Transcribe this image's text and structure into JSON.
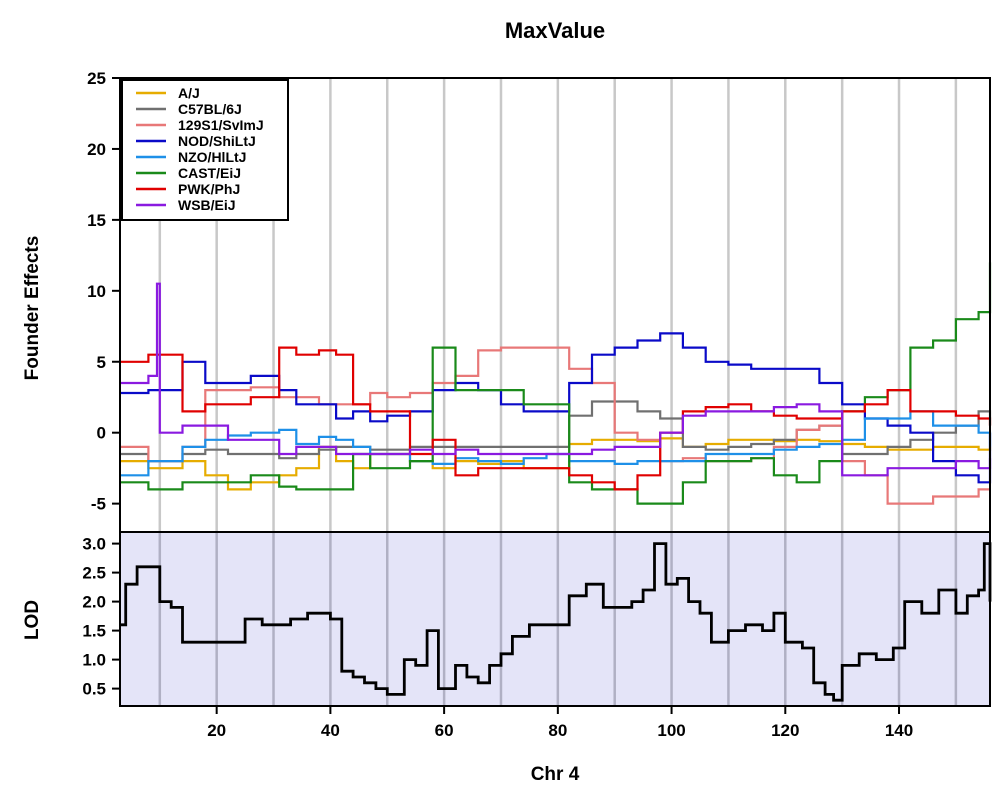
{
  "chart_data": [
    {
      "type": "line",
      "name": "founder-effects",
      "title": "MaxValue",
      "xlabel": "",
      "ylabel": "Founder Effects",
      "xlim": [
        3,
        156
      ],
      "ylim": [
        -7,
        25
      ],
      "yticks": [
        -5,
        0,
        5,
        10,
        15,
        20,
        25
      ],
      "grid_x": [
        10,
        20,
        30,
        40,
        50,
        60,
        70,
        80,
        90,
        100,
        110,
        120,
        130,
        140,
        150
      ],
      "legend_position": "top-left",
      "series": [
        {
          "name": "A/J",
          "color": "#e6ac00",
          "x": [
            3,
            8,
            14,
            18,
            22,
            26,
            31,
            34,
            38,
            41,
            44,
            47,
            50,
            54,
            58,
            62,
            66,
            70,
            74,
            78,
            82,
            86,
            90,
            94,
            98,
            102,
            106,
            110,
            114,
            118,
            122,
            126,
            130,
            134,
            138,
            142,
            146,
            150,
            154,
            156
          ],
          "y": [
            -2,
            -2.5,
            -2,
            -3,
            -4,
            -3.5,
            -3,
            -2.5,
            -1,
            -2,
            -2.5,
            -1.5,
            -1.5,
            -2,
            -2.5,
            -2,
            -2.2,
            -2,
            -2.5,
            -2.5,
            -0.8,
            -0.5,
            -0.5,
            -0.6,
            -0.4,
            -1,
            -0.8,
            -0.5,
            -0.5,
            -0.6,
            -0.5,
            -0.6,
            -0.8,
            -1,
            -1.2,
            -1.2,
            -1,
            -1,
            -1.2,
            -1
          ]
        },
        {
          "name": "C57BL/6J",
          "color": "#707070",
          "x": [
            3,
            8,
            14,
            18,
            22,
            26,
            31,
            34,
            38,
            41,
            44,
            47,
            50,
            54,
            58,
            62,
            66,
            70,
            74,
            78,
            82,
            86,
            90,
            94,
            98,
            102,
            106,
            110,
            114,
            118,
            122,
            126,
            130,
            134,
            138,
            142,
            146,
            150,
            154,
            156
          ],
          "y": [
            -1.5,
            -2,
            -1.5,
            -1.2,
            -1.5,
            -1.5,
            -1.8,
            -1.5,
            -1.2,
            -1,
            -1,
            -1.2,
            -1.2,
            -1,
            -1,
            -1,
            -1,
            -1,
            -1,
            -1,
            1.2,
            2.2,
            2.2,
            1.5,
            1,
            -1,
            -1.2,
            -1,
            -0.8,
            -0.5,
            0.2,
            0.5,
            -1.5,
            -1.5,
            -1,
            -0.5,
            0,
            0.5,
            1.5,
            0.5
          ]
        },
        {
          "name": "129S1/SvImJ",
          "color": "#e87878",
          "x": [
            3,
            8,
            14,
            18,
            22,
            26,
            31,
            34,
            38,
            41,
            44,
            47,
            50,
            54,
            58,
            62,
            66,
            70,
            74,
            78,
            82,
            86,
            90,
            94,
            98,
            102,
            106,
            110,
            114,
            118,
            122,
            126,
            130,
            134,
            138,
            142,
            146,
            150,
            154,
            156
          ],
          "y": [
            -1,
            -2,
            -1,
            3,
            3,
            3.2,
            2.5,
            2.5,
            2,
            2,
            2,
            2.8,
            2.5,
            2.8,
            3.5,
            4,
            5.8,
            6,
            6,
            6,
            4.5,
            3.5,
            0,
            -0.5,
            -2,
            -1.8,
            -2,
            -2,
            -1.8,
            -1,
            0.2,
            0.5,
            -2,
            -3,
            -5,
            -5,
            -4.5,
            -4.5,
            -4,
            -4
          ]
        },
        {
          "name": "NOD/ShiLtJ",
          "color": "#0a0ac8",
          "x": [
            3,
            8,
            14,
            18,
            22,
            26,
            31,
            34,
            38,
            41,
            44,
            47,
            50,
            54,
            58,
            62,
            66,
            70,
            74,
            78,
            82,
            86,
            90,
            94,
            98,
            102,
            106,
            110,
            114,
            118,
            122,
            126,
            130,
            134,
            138,
            142,
            146,
            150,
            154,
            156
          ],
          "y": [
            2.8,
            3,
            5,
            3.5,
            3.5,
            4,
            3,
            2,
            2,
            1,
            1.5,
            0.8,
            1.2,
            1.5,
            3,
            3.5,
            3,
            2,
            1.5,
            1.5,
            3.5,
            5.5,
            6,
            6.5,
            7,
            6,
            5,
            4.8,
            4.5,
            4.5,
            4.5,
            3.5,
            2,
            1,
            0.5,
            0,
            -2,
            -3,
            -3.5,
            0
          ]
        },
        {
          "name": "NZO/HlLtJ",
          "color": "#1e90e8",
          "x": [
            3,
            8,
            14,
            18,
            22,
            26,
            31,
            34,
            38,
            41,
            44,
            47,
            50,
            54,
            58,
            62,
            66,
            70,
            74,
            78,
            82,
            86,
            90,
            94,
            98,
            102,
            106,
            110,
            114,
            118,
            122,
            126,
            130,
            134,
            138,
            142,
            146,
            150,
            154,
            156
          ],
          "y": [
            -3,
            -2,
            -1,
            -0.5,
            -0.2,
            0,
            0.2,
            -0.8,
            -0.3,
            -0.5,
            -1,
            -1.5,
            -1.5,
            -2,
            -2.2,
            -1.8,
            -2,
            -2.2,
            -1.8,
            -1.5,
            -2,
            -2,
            -2.2,
            -2,
            -2,
            -2,
            -1.5,
            -1.5,
            -1.5,
            -1.2,
            -1,
            -0.8,
            -0.5,
            1,
            1,
            1.5,
            0.5,
            0.5,
            0,
            -1
          ]
        },
        {
          "name": "CAST/EiJ",
          "color": "#1a8a1a",
          "x": [
            3,
            8,
            14,
            18,
            22,
            26,
            31,
            34,
            38,
            41,
            44,
            47,
            50,
            54,
            58,
            62,
            66,
            70,
            74,
            78,
            82,
            86,
            90,
            94,
            98,
            102,
            106,
            110,
            114,
            118,
            122,
            126,
            130,
            134,
            138,
            142,
            146,
            150,
            154,
            156
          ],
          "y": [
            -3.5,
            -4,
            -3.5,
            -3.5,
            -3.5,
            -3,
            -3.8,
            -4,
            -4,
            -4,
            -1.5,
            -2.5,
            -2.5,
            -2,
            6,
            3,
            3,
            3,
            2,
            2,
            -3.5,
            -4,
            -4,
            -5,
            -5,
            -3.5,
            -2,
            -2,
            -1.8,
            -3,
            -3.5,
            -2,
            1.5,
            2.5,
            3,
            6,
            6.5,
            8,
            8.5,
            12
          ]
        },
        {
          "name": "PWK/PhJ",
          "color": "#e00000",
          "x": [
            3,
            8,
            14,
            18,
            22,
            26,
            31,
            34,
            38,
            41,
            44,
            47,
            50,
            54,
            58,
            62,
            66,
            70,
            74,
            78,
            82,
            86,
            90,
            94,
            98,
            102,
            106,
            110,
            114,
            118,
            122,
            126,
            130,
            134,
            138,
            142,
            146,
            150,
            154,
            156
          ],
          "y": [
            5,
            5.5,
            1.5,
            2,
            2,
            2.5,
            6,
            5.5,
            5.8,
            5.5,
            2,
            1.5,
            1.5,
            -1.5,
            -0.5,
            -3,
            -2.5,
            -2.5,
            -2.5,
            -2.5,
            -3,
            -3.5,
            -4,
            -3,
            0,
            1.5,
            1.8,
            2,
            1.5,
            1.2,
            1,
            1,
            1.5,
            2,
            3,
            1.5,
            1.5,
            1.2,
            1,
            0.5
          ]
        },
        {
          "name": "WSB/EiJ",
          "color": "#8a1ae0",
          "x": [
            3,
            8,
            9.5,
            10,
            14,
            18,
            22,
            26,
            31,
            34,
            38,
            41,
            44,
            47,
            50,
            54,
            58,
            62,
            66,
            70,
            74,
            78,
            82,
            86,
            90,
            94,
            98,
            102,
            106,
            110,
            114,
            118,
            122,
            126,
            130,
            134,
            138,
            142,
            146,
            150,
            154,
            156
          ],
          "y": [
            3.5,
            4,
            10.5,
            0,
            0.5,
            0.5,
            -0.5,
            -0.5,
            -1.5,
            -1,
            -1,
            -1.5,
            -1.5,
            -1.5,
            -1.5,
            -1.2,
            -1.5,
            -1.2,
            -1.5,
            -1.5,
            -1.5,
            -1.5,
            -1.5,
            -1.2,
            -1,
            -1,
            0,
            1.2,
            1.5,
            1.5,
            1.5,
            1.8,
            2,
            1.5,
            -3,
            -3,
            -2.5,
            -2.5,
            -2.5,
            -2,
            -2.5,
            -1.8
          ]
        }
      ]
    },
    {
      "type": "line",
      "name": "lod",
      "xlabel": "Chr 4",
      "ylabel": "LOD",
      "xlim": [
        3,
        156
      ],
      "ylim": [
        0.2,
        3.2
      ],
      "yticks": [
        0.5,
        1.0,
        1.5,
        2.0,
        2.5,
        3.0
      ],
      "ytick_labels": [
        "0.5",
        "1.0",
        "1.5",
        "2.0",
        "2.5",
        "3.0"
      ],
      "xticks": [
        20,
        40,
        60,
        80,
        100,
        120,
        140
      ],
      "grid_x": [
        10,
        20,
        30,
        40,
        50,
        60,
        70,
        80,
        90,
        100,
        110,
        120,
        130,
        140,
        150
      ],
      "background": "#e4e4f8",
      "series": [
        {
          "color": "#000000",
          "x": [
            3,
            4,
            6,
            10,
            12,
            14,
            18,
            22,
            25,
            28,
            30,
            33,
            36,
            40,
            42,
            44,
            46,
            48,
            50,
            53,
            55,
            57,
            59,
            62,
            64,
            66,
            68,
            70,
            72,
            75,
            78,
            82,
            85,
            88,
            90,
            93,
            95,
            97,
            99,
            101,
            103,
            105,
            107,
            110,
            113,
            116,
            118,
            120,
            123,
            125,
            127,
            128.5,
            130,
            133,
            136,
            139,
            141,
            144,
            147,
            150,
            152,
            154,
            155,
            156
          ],
          "y": [
            1.6,
            2.3,
            2.6,
            2.0,
            1.9,
            1.3,
            1.3,
            1.3,
            1.7,
            1.6,
            1.6,
            1.7,
            1.8,
            1.7,
            0.8,
            0.7,
            0.6,
            0.5,
            0.4,
            1.0,
            0.9,
            1.5,
            0.5,
            0.9,
            0.7,
            0.6,
            0.9,
            1.1,
            1.4,
            1.6,
            1.6,
            2.1,
            2.3,
            1.9,
            1.9,
            2.0,
            2.2,
            3.0,
            2.3,
            2.4,
            2.0,
            1.8,
            1.3,
            1.5,
            1.6,
            1.5,
            1.8,
            1.3,
            1.2,
            0.6,
            0.4,
            0.3,
            0.9,
            1.1,
            1.0,
            1.2,
            2.0,
            1.8,
            2.2,
            1.8,
            2.1,
            2.2,
            3.0,
            2.0
          ]
        }
      ]
    }
  ]
}
